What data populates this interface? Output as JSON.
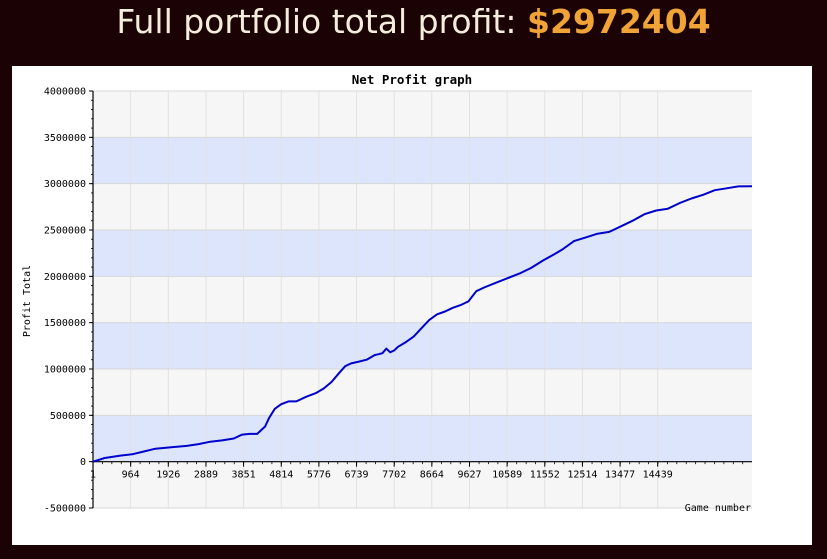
{
  "header": {
    "label": "Full portfolio total profit:",
    "amount": "$2972404"
  },
  "colors": {
    "page_background": "#1b0204",
    "header_text": "#f4ecdc",
    "amount_text": "#f0a336",
    "band_light": "#f6f6f6",
    "band_blue": "#dde5fd",
    "series_line": "#0000cc"
  },
  "chart_data": {
    "type": "line",
    "title": "Net Profit graph",
    "xlabel": "Game number",
    "ylabel": "Profit Total",
    "xlim": [
      1,
      16850
    ],
    "ylim": [
      -500000,
      4000000
    ],
    "x_ticks": [
      "1",
      "964",
      "1926",
      "2889",
      "3851",
      "4814",
      "5776",
      "6739",
      "7702",
      "8664",
      "9627",
      "10589",
      "11552",
      "12514",
      "13477",
      "14439"
    ],
    "y_ticks": [
      "4000000",
      "3500000",
      "3000000",
      "2500000",
      "2000000",
      "1500000",
      "1000000",
      "500000",
      "0",
      "-500000"
    ],
    "grid": true,
    "series": [
      {
        "x": [
          1,
          300,
          700,
          1000,
          1300,
          1600,
          2000,
          2400,
          2700,
          3000,
          3300,
          3600,
          3800,
          4000,
          4200,
          4400,
          4500,
          4650,
          4814,
          5000,
          5200,
          5450,
          5700,
          5900,
          6100,
          6300,
          6450,
          6600,
          6800,
          7000,
          7200,
          7300,
          7400,
          7500,
          7600,
          7700,
          7800,
          8000,
          8200,
          8400,
          8600,
          8800,
          9000,
          9200,
          9400,
          9600,
          9800,
          10000,
          10300,
          10600,
          10900,
          11200,
          11500,
          11800,
          12000,
          12300,
          12600,
          12900,
          13200,
          13500,
          13800,
          14100,
          14400,
          14700,
          15000,
          15300,
          15600,
          15900,
          16200,
          16500,
          16850
        ],
        "y": [
          0,
          40000,
          65000,
          80000,
          110000,
          140000,
          155000,
          170000,
          190000,
          215000,
          230000,
          250000,
          290000,
          300000,
          300000,
          380000,
          470000,
          570000,
          620000,
          650000,
          650000,
          700000,
          740000,
          790000,
          860000,
          960000,
          1030000,
          1060000,
          1080000,
          1100000,
          1150000,
          1160000,
          1170000,
          1220000,
          1180000,
          1200000,
          1240000,
          1290000,
          1350000,
          1440000,
          1530000,
          1590000,
          1620000,
          1660000,
          1690000,
          1730000,
          1840000,
          1880000,
          1930000,
          1980000,
          2030000,
          2090000,
          2170000,
          2240000,
          2290000,
          2380000,
          2420000,
          2460000,
          2480000,
          2540000,
          2600000,
          2670000,
          2710000,
          2730000,
          2790000,
          2840000,
          2880000,
          2930000,
          2950000,
          2970000,
          2972404
        ]
      }
    ]
  }
}
